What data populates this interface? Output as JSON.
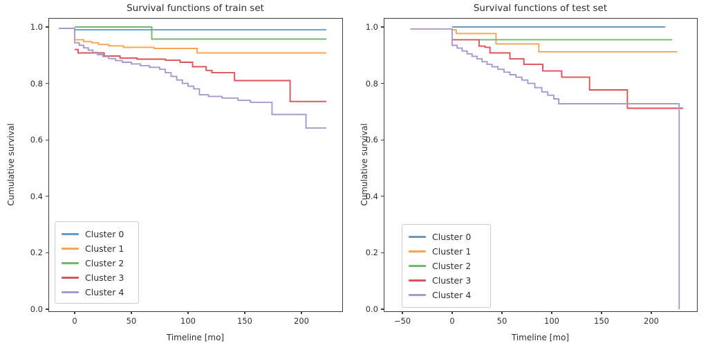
{
  "figure": {
    "background": "#ffffff",
    "text_color": "#2e2e2e",
    "spine_color": "#3b3b3b"
  },
  "chart_data": [
    {
      "type": "line",
      "step": true,
      "title": "Survival functions of train set",
      "xlabel": "Timeline [mo]",
      "ylabel": "Cumulative survival",
      "xlim": [
        -23,
        236
      ],
      "ylim": [
        -0.007,
        1.032
      ],
      "grid": false,
      "legend_position": "lower left",
      "xticks": [
        0,
        50,
        100,
        150,
        200
      ],
      "xtick_labels": [
        "0",
        "50",
        "100",
        "150",
        "200"
      ],
      "yticks": [
        0.0,
        0.2,
        0.4,
        0.6,
        0.8,
        1.0
      ],
      "ytick_labels": [
        "0.0",
        "0.2",
        "0.4",
        "0.6",
        "0.8",
        "1.0"
      ],
      "series": [
        {
          "name": "Cluster 0",
          "color": "#5f9dc8",
          "points": [
            [
              0,
              0.99
            ],
            [
              222,
              0.99
            ]
          ]
        },
        {
          "name": "Cluster 1",
          "color": "#f9a452",
          "points": [
            [
              0,
              0.955
            ],
            [
              8,
              0.948
            ],
            [
              15,
              0.944
            ],
            [
              21,
              0.938
            ],
            [
              30,
              0.933
            ],
            [
              43,
              0.928
            ],
            [
              70,
              0.924
            ],
            [
              108,
              0.908
            ],
            [
              222,
              0.908
            ]
          ]
        },
        {
          "name": "Cluster 2",
          "color": "#6dba6d",
          "points": [
            [
              0,
              1.0
            ],
            [
              68,
              0.957
            ],
            [
              222,
              0.957
            ]
          ]
        },
        {
          "name": "Cluster 3",
          "color": "#da5457",
          "points": [
            [
              0,
              0.92
            ],
            [
              3,
              0.908
            ],
            [
              26,
              0.897
            ],
            [
              40,
              0.89
            ],
            [
              55,
              0.886
            ],
            [
              80,
              0.882
            ],
            [
              93,
              0.875
            ],
            [
              104,
              0.859
            ],
            [
              116,
              0.846
            ],
            [
              121,
              0.838
            ],
            [
              141,
              0.81
            ],
            [
              190,
              0.736
            ],
            [
              222,
              0.736
            ]
          ]
        },
        {
          "name": "Cluster 4",
          "color": "#ab97ce",
          "points": [
            [
              -14,
              0.995
            ],
            [
              0,
              0.944
            ],
            [
              4,
              0.935
            ],
            [
              8,
              0.926
            ],
            [
              12,
              0.918
            ],
            [
              16,
              0.91
            ],
            [
              20,
              0.902
            ],
            [
              25,
              0.895
            ],
            [
              30,
              0.888
            ],
            [
              36,
              0.881
            ],
            [
              42,
              0.875
            ],
            [
              50,
              0.869
            ],
            [
              58,
              0.863
            ],
            [
              66,
              0.857
            ],
            [
              75,
              0.85
            ],
            [
              80,
              0.838
            ],
            [
              85,
              0.825
            ],
            [
              90,
              0.812
            ],
            [
              95,
              0.8
            ],
            [
              100,
              0.79
            ],
            [
              105,
              0.781
            ],
            [
              110,
              0.76
            ],
            [
              118,
              0.754
            ],
            [
              130,
              0.748
            ],
            [
              144,
              0.74
            ],
            [
              155,
              0.733
            ],
            [
              174,
              0.69
            ],
            [
              204,
              0.642
            ],
            [
              222,
              0.642
            ]
          ]
        }
      ]
    },
    {
      "type": "line",
      "step": true,
      "title": "Survival functions of test set",
      "xlabel": "Timeline [mo]",
      "ylabel": "Cumulative survival",
      "xlim": [
        -69,
        246
      ],
      "ylim": [
        -0.007,
        1.032
      ],
      "grid": false,
      "legend_position": "lower left",
      "xticks": [
        -50,
        0,
        50,
        100,
        150,
        200
      ],
      "xtick_labels": [
        "−50",
        "0",
        "50",
        "100",
        "150",
        "200"
      ],
      "yticks": [
        0.0,
        0.2,
        0.4,
        0.6,
        0.8,
        1.0
      ],
      "ytick_labels": [
        "0.0",
        "0.2",
        "0.4",
        "0.6",
        "0.8",
        "1.0"
      ],
      "series": [
        {
          "name": "Cluster 0",
          "color": "#5f9dc8",
          "points": [
            [
              0,
              1.0
            ],
            [
              214,
              1.0
            ]
          ]
        },
        {
          "name": "Cluster 1",
          "color": "#f9a452",
          "points": [
            [
              0,
              0.99
            ],
            [
              4,
              0.977
            ],
            [
              44,
              0.94
            ],
            [
              87,
              0.912
            ],
            [
              226,
              0.912
            ]
          ]
        },
        {
          "name": "Cluster 2",
          "color": "#6dba6d",
          "points": [
            [
              0,
              0.955
            ],
            [
              221,
              0.955
            ]
          ]
        },
        {
          "name": "Cluster 3",
          "color": "#da5457",
          "points": [
            [
              0,
              0.955
            ],
            [
              27,
              0.932
            ],
            [
              33,
              0.928
            ],
            [
              38,
              0.908
            ],
            [
              58,
              0.887
            ],
            [
              72,
              0.868
            ],
            [
              91,
              0.844
            ],
            [
              110,
              0.822
            ],
            [
              138,
              0.777
            ],
            [
              176,
              0.712
            ],
            [
              232,
              0.712
            ]
          ]
        },
        {
          "name": "Cluster 4",
          "color": "#ab97ce",
          "points": [
            [
              -42,
              0.993
            ],
            [
              0,
              0.935
            ],
            [
              5,
              0.925
            ],
            [
              10,
              0.915
            ],
            [
              15,
              0.905
            ],
            [
              20,
              0.896
            ],
            [
              25,
              0.887
            ],
            [
              30,
              0.877
            ],
            [
              35,
              0.868
            ],
            [
              40,
              0.859
            ],
            [
              46,
              0.85
            ],
            [
              52,
              0.84
            ],
            [
              58,
              0.831
            ],
            [
              64,
              0.822
            ],
            [
              70,
              0.812
            ],
            [
              76,
              0.8
            ],
            [
              83,
              0.785
            ],
            [
              90,
              0.77
            ],
            [
              96,
              0.758
            ],
            [
              102,
              0.745
            ],
            [
              107,
              0.728
            ],
            [
              228,
              0.728
            ],
            [
              228,
              0.0
            ]
          ]
        }
      ]
    }
  ]
}
